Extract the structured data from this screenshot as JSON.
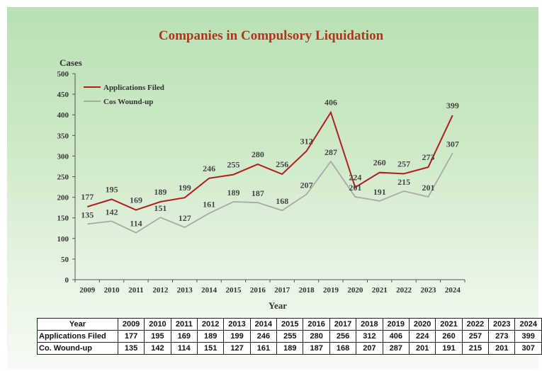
{
  "chart_data": {
    "type": "line",
    "title": "Companies in Compulsory Liquidation",
    "xlabel": "Year",
    "ylabel": "Cases",
    "ylim": [
      0,
      500
    ],
    "yticks": [
      0,
      50,
      100,
      150,
      200,
      250,
      300,
      350,
      400,
      450,
      500
    ],
    "categories": [
      "2009",
      "2010",
      "2011",
      "2012",
      "2013",
      "2014",
      "2015",
      "2016",
      "2017",
      "2018",
      "2019",
      "2020",
      "2021",
      "2022",
      "2023",
      "2024"
    ],
    "series": [
      {
        "name": "Applications Filed",
        "color": "#b01e1e",
        "values": [
          177,
          195,
          169,
          189,
          199,
          246,
          255,
          280,
          256,
          312,
          406,
          224,
          260,
          257,
          273,
          399
        ]
      },
      {
        "name": "Cos Wound-up",
        "color": "#a9a9a9",
        "values": [
          135,
          142,
          114,
          151,
          127,
          161,
          189,
          187,
          168,
          207,
          287,
          201,
          191,
          215,
          201,
          307
        ]
      }
    ],
    "legend_position": "top-left",
    "grid": false
  },
  "table": {
    "header_label": "Year",
    "rows": [
      {
        "label": "Applications Filed",
        "values": [
          177,
          195,
          169,
          189,
          199,
          246,
          255,
          280,
          256,
          312,
          406,
          224,
          260,
          257,
          273,
          399
        ]
      },
      {
        "label": "Co. Wound-up",
        "values": [
          135,
          142,
          114,
          151,
          127,
          161,
          189,
          187,
          168,
          207,
          287,
          201,
          191,
          215,
          201,
          307
        ]
      }
    ]
  }
}
